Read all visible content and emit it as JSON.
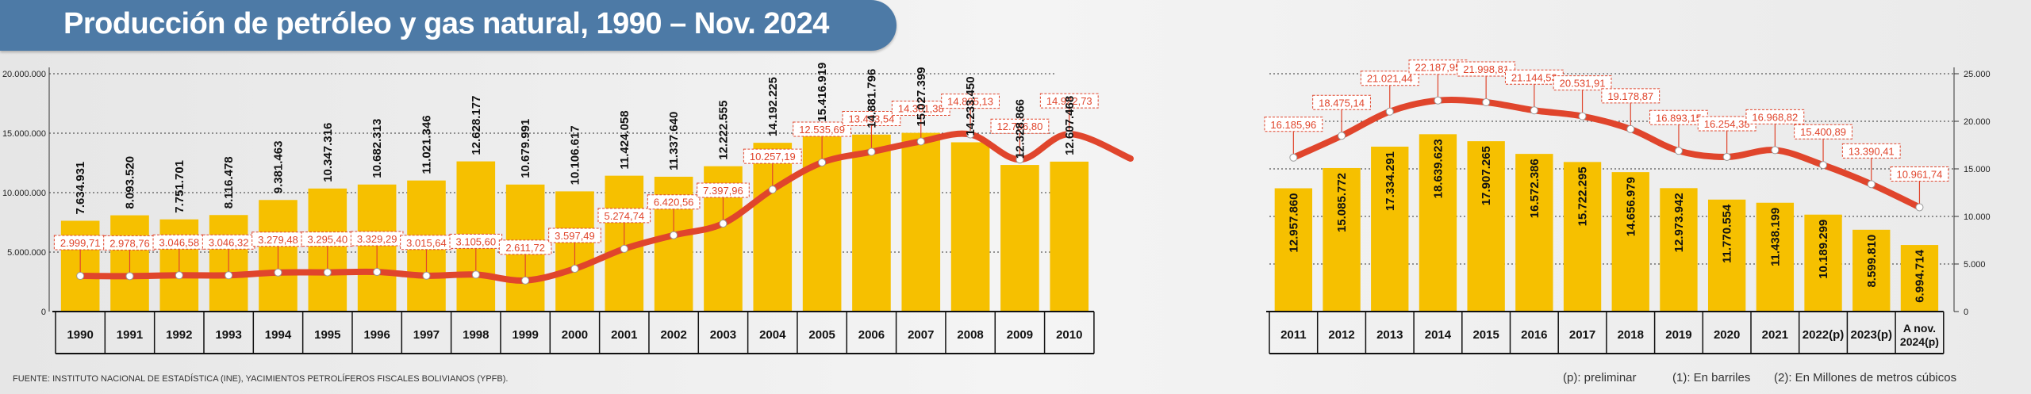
{
  "title": "Producción de petróleo y gas natural, 1990 – Nov. 2024",
  "source": "FUENTE: INSTITUTO NACIONAL DE ESTADÍSTICA (INE), YACIMIENTOS PETROLÍFEROS FISCALES BOLIVIANOS (YPFB).",
  "legend_notes": [
    "(p): preliminar",
    "(1): En barriles",
    "(2): En Millones de metros cúbicos"
  ],
  "colors": {
    "bar": "#f6c000",
    "line": "#e0452c",
    "label_red": "#e0452c",
    "banner": "#4d7aa6"
  },
  "chart_data": [
    {
      "type": "bar",
      "categories": [
        "1990",
        "1991",
        "1992",
        "1993",
        "1994",
        "1995",
        "1996",
        "1997",
        "1998",
        "1999",
        "2000",
        "2001",
        "2002",
        "2003",
        "2004",
        "2005",
        "2006",
        "2007",
        "2008",
        "2009",
        "2010"
      ],
      "ylim": [
        0,
        20000000
      ],
      "yticks": [
        "0",
        "5.000.000",
        "10.000.000",
        "15.000.000",
        "20.000.000"
      ],
      "series": [
        {
          "values": [
            7634931,
            8093520,
            7751701,
            8116478,
            9381463,
            10347316,
            10682313,
            11021346,
            12628177,
            10679991,
            10106617,
            11424058,
            11337640,
            12222555,
            14192225,
            15416919,
            14881796,
            15027399,
            14233450,
            12328866,
            12607468
          ],
          "labels": [
            "7.634.931",
            "8.093.520",
            "7.751.701",
            "8.116.478",
            "9.381.463",
            "10.347.316",
            "10.682.313",
            "11.021.346",
            "12.628.177",
            "10.679.991",
            "10.106.617",
            "11.424.058",
            "11.337.640",
            "12.222.555",
            "14.192.225",
            "15.416.919",
            "14.881.796",
            "15.027.399",
            "14.233.450",
            "12.328.866",
            "12.607.468"
          ]
        }
      ],
      "line": {
        "values": [
          2999.71,
          2978.76,
          3046.58,
          3046.32,
          3279.48,
          3295.4,
          3329.29,
          3015.64,
          3105.6,
          2611.72,
          3597.49,
          5274.74,
          6420.56,
          7397.96,
          10257.19,
          12535.69,
          13433.54,
          14301.38,
          14895.13,
          12786.8,
          14922.73
        ],
        "labels": [
          "2.999,71",
          "2.978,76",
          "3.046,58",
          "3.046,32",
          "3.279,48",
          "3.295,40",
          "3.329,29",
          "3.015,64",
          "3.105,60",
          "2.611,72",
          "3.597,49",
          "5.274,74",
          "6.420,56",
          "7.397,96",
          "10.257,19",
          "12.535,69",
          "13.433,54",
          "14.301,38",
          "14.895,13",
          "12.786,80",
          "14.922,73"
        ],
        "scale": 1000
      }
    },
    {
      "type": "bar",
      "categories": [
        "2011",
        "2012",
        "2013",
        "2014",
        "2015",
        "2016",
        "2017",
        "2018",
        "2019",
        "2020",
        "2021",
        "2022(p)",
        "2023(p)",
        "A nov. 2024(p)"
      ],
      "ylim": [
        0,
        25000
      ],
      "yticks": [
        "0",
        "5.000",
        "10.000",
        "15.000",
        "20.000",
        "25.000"
      ],
      "series": [
        {
          "values": [
            12957860,
            15085772,
            17334291,
            18639623,
            17907265,
            16572386,
            15722295,
            14656979,
            12973942,
            11770554,
            11438199,
            10189299,
            8599810,
            6994714
          ],
          "labels": [
            "12.957.860",
            "15.085.772",
            "17.334.291",
            "18.639.623",
            "17.907.265",
            "16.572.386",
            "15.722.295",
            "14.656.979",
            "12.973.942",
            "11.770.554",
            "11.438.199",
            "10.189.299",
            "8.599.810",
            "6.994.714"
          ]
        }
      ],
      "line": {
        "values": [
          16185.96,
          18475.14,
          21021.44,
          22187.95,
          21998.81,
          21144.53,
          20531.91,
          19178.87,
          16893.15,
          16254.38,
          16968.82,
          15400.89,
          13390.41,
          10961.74
        ],
        "labels": [
          "16.185,96",
          "18.475,14",
          "21.021,44",
          "22.187,95",
          "21.998,81",
          "21.144,53",
          "20.531,91",
          "19.178,87",
          "16.893,15",
          "16.254,38",
          "16.968,82",
          "15.400,89",
          "13.390,41",
          "10.961,74"
        ]
      }
    }
  ]
}
